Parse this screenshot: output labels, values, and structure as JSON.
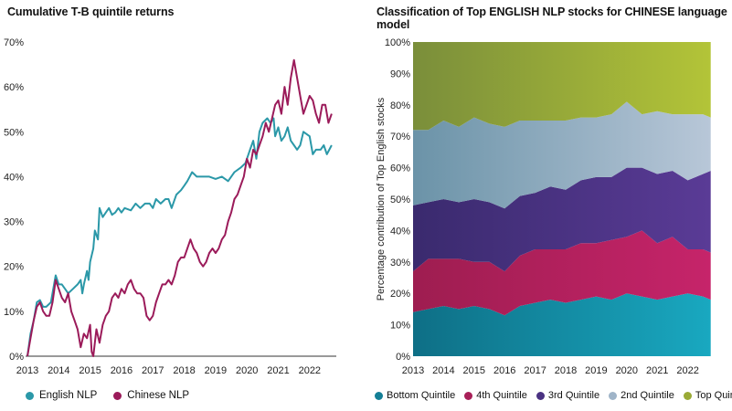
{
  "chart_data": [
    {
      "type": "line",
      "title": "Cumulative T-B quintile returns",
      "ylim": [
        0,
        70
      ],
      "y_ticks": [
        "0%",
        "10%",
        "20%",
        "30%",
        "40%",
        "50%",
        "60%",
        "70%"
      ],
      "x_ticks": [
        "2013",
        "2014",
        "2015",
        "2016",
        "2017",
        "2018",
        "2019",
        "2020",
        "2021",
        "2022"
      ],
      "xlim": [
        2013.0,
        2022.85
      ],
      "grid": false,
      "legend_position": "bottom",
      "series": [
        {
          "name": "English NLP",
          "color": "#2b98a8",
          "points": [
            [
              2013.0,
              0
            ],
            [
              2013.1,
              5
            ],
            [
              2013.2,
              8
            ],
            [
              2013.3,
              12
            ],
            [
              2013.4,
              12.5
            ],
            [
              2013.5,
              11
            ],
            [
              2013.6,
              11
            ],
            [
              2013.75,
              12
            ],
            [
              2013.9,
              18
            ],
            [
              2014.0,
              16
            ],
            [
              2014.1,
              16
            ],
            [
              2014.2,
              15
            ],
            [
              2014.3,
              14
            ],
            [
              2014.45,
              15
            ],
            [
              2014.6,
              16
            ],
            [
              2014.7,
              17
            ],
            [
              2014.75,
              14
            ],
            [
              2014.8,
              16
            ],
            [
              2014.9,
              19
            ],
            [
              2014.95,
              17
            ],
            [
              2015.0,
              21
            ],
            [
              2015.1,
              24
            ],
            [
              2015.15,
              28
            ],
            [
              2015.25,
              26
            ],
            [
              2015.3,
              33
            ],
            [
              2015.4,
              31
            ],
            [
              2015.5,
              32
            ],
            [
              2015.6,
              33
            ],
            [
              2015.7,
              31.5
            ],
            [
              2015.8,
              32
            ],
            [
              2015.9,
              33
            ],
            [
              2016.0,
              32
            ],
            [
              2016.1,
              33
            ],
            [
              2016.3,
              32.5
            ],
            [
              2016.45,
              34
            ],
            [
              2016.6,
              33
            ],
            [
              2016.75,
              34
            ],
            [
              2016.9,
              34
            ],
            [
              2017.0,
              33
            ],
            [
              2017.1,
              35
            ],
            [
              2017.25,
              34
            ],
            [
              2017.4,
              35
            ],
            [
              2017.5,
              35
            ],
            [
              2017.6,
              33
            ],
            [
              2017.75,
              36
            ],
            [
              2017.9,
              37
            ],
            [
              2018.0,
              38
            ],
            [
              2018.1,
              39
            ],
            [
              2018.25,
              41
            ],
            [
              2018.4,
              40
            ],
            [
              2018.6,
              40
            ],
            [
              2018.8,
              40
            ],
            [
              2019.0,
              39.5
            ],
            [
              2019.2,
              40
            ],
            [
              2019.4,
              39
            ],
            [
              2019.6,
              41
            ],
            [
              2019.8,
              42
            ],
            [
              2019.95,
              43
            ],
            [
              2020.0,
              44
            ],
            [
              2020.1,
              46
            ],
            [
              2020.2,
              48
            ],
            [
              2020.3,
              44
            ],
            [
              2020.4,
              50
            ],
            [
              2020.5,
              52
            ],
            [
              2020.65,
              53
            ],
            [
              2020.75,
              52
            ],
            [
              2020.85,
              53
            ],
            [
              2020.9,
              49
            ],
            [
              2021.0,
              51
            ],
            [
              2021.1,
              48
            ],
            [
              2021.2,
              49
            ],
            [
              2021.3,
              51
            ],
            [
              2021.4,
              48
            ],
            [
              2021.5,
              47
            ],
            [
              2021.6,
              46
            ],
            [
              2021.7,
              47
            ],
            [
              2021.8,
              50
            ],
            [
              2022.0,
              49
            ],
            [
              2022.1,
              45
            ],
            [
              2022.2,
              46
            ],
            [
              2022.35,
              46
            ],
            [
              2022.45,
              47
            ],
            [
              2022.55,
              45
            ],
            [
              2022.7,
              47
            ]
          ]
        },
        {
          "name": "Chinese NLP",
          "color": "#9b1b5a",
          "points": [
            [
              2013.0,
              0
            ],
            [
              2013.1,
              4
            ],
            [
              2013.2,
              8
            ],
            [
              2013.3,
              11
            ],
            [
              2013.4,
              12
            ],
            [
              2013.5,
              10
            ],
            [
              2013.6,
              9
            ],
            [
              2013.7,
              9
            ],
            [
              2013.8,
              12
            ],
            [
              2013.9,
              17
            ],
            [
              2014.0,
              15
            ],
            [
              2014.1,
              13
            ],
            [
              2014.2,
              12
            ],
            [
              2014.3,
              14
            ],
            [
              2014.4,
              10
            ],
            [
              2014.5,
              8
            ],
            [
              2014.6,
              6
            ],
            [
              2014.7,
              2
            ],
            [
              2014.8,
              5
            ],
            [
              2014.9,
              4
            ],
            [
              2015.0,
              7
            ],
            [
              2015.05,
              1
            ],
            [
              2015.1,
              0
            ],
            [
              2015.2,
              6
            ],
            [
              2015.3,
              3
            ],
            [
              2015.4,
              7
            ],
            [
              2015.5,
              9
            ],
            [
              2015.6,
              10
            ],
            [
              2015.7,
              13
            ],
            [
              2015.8,
              14
            ],
            [
              2015.9,
              13
            ],
            [
              2016.0,
              15
            ],
            [
              2016.1,
              14
            ],
            [
              2016.2,
              16
            ],
            [
              2016.3,
              17
            ],
            [
              2016.4,
              15
            ],
            [
              2016.5,
              14
            ],
            [
              2016.6,
              14
            ],
            [
              2016.7,
              13
            ],
            [
              2016.8,
              9
            ],
            [
              2016.9,
              8
            ],
            [
              2017.0,
              9
            ],
            [
              2017.1,
              12
            ],
            [
              2017.2,
              14
            ],
            [
              2017.3,
              16
            ],
            [
              2017.4,
              16
            ],
            [
              2017.5,
              17
            ],
            [
              2017.6,
              16
            ],
            [
              2017.7,
              18
            ],
            [
              2017.8,
              21
            ],
            [
              2017.9,
              22
            ],
            [
              2018.0,
              22
            ],
            [
              2018.1,
              24
            ],
            [
              2018.2,
              26
            ],
            [
              2018.3,
              24
            ],
            [
              2018.4,
              23
            ],
            [
              2018.5,
              21
            ],
            [
              2018.6,
              20
            ],
            [
              2018.7,
              21
            ],
            [
              2018.8,
              23
            ],
            [
              2018.9,
              24
            ],
            [
              2019.0,
              23
            ],
            [
              2019.1,
              24
            ],
            [
              2019.2,
              26
            ],
            [
              2019.3,
              27
            ],
            [
              2019.4,
              30
            ],
            [
              2019.5,
              32
            ],
            [
              2019.6,
              35
            ],
            [
              2019.7,
              36
            ],
            [
              2019.8,
              38
            ],
            [
              2019.9,
              40
            ],
            [
              2020.0,
              44
            ],
            [
              2020.1,
              42
            ],
            [
              2020.2,
              46
            ],
            [
              2020.3,
              45
            ],
            [
              2020.4,
              47
            ],
            [
              2020.5,
              49
            ],
            [
              2020.6,
              52
            ],
            [
              2020.7,
              50
            ],
            [
              2020.8,
              53
            ],
            [
              2020.9,
              56
            ],
            [
              2021.0,
              57
            ],
            [
              2021.1,
              54
            ],
            [
              2021.2,
              60
            ],
            [
              2021.3,
              56
            ],
            [
              2021.4,
              62
            ],
            [
              2021.5,
              66
            ],
            [
              2021.6,
              62
            ],
            [
              2021.7,
              58
            ],
            [
              2021.8,
              54
            ],
            [
              2021.9,
              56
            ],
            [
              2022.0,
              58
            ],
            [
              2022.1,
              57
            ],
            [
              2022.2,
              54
            ],
            [
              2022.3,
              52
            ],
            [
              2022.4,
              56
            ],
            [
              2022.5,
              56
            ],
            [
              2022.6,
              52
            ],
            [
              2022.7,
              54
            ]
          ]
        }
      ]
    },
    {
      "type": "area",
      "stacked": true,
      "title": "Classification of Top ENGLISH NLP stocks for CHINESE language model",
      "ylabel": "Percentage contribution of Top English stocks",
      "ylim": [
        0,
        100
      ],
      "y_ticks": [
        "0%",
        "10%",
        "20%",
        "30%",
        "40%",
        "50%",
        "60%",
        "70%",
        "80%",
        "90%",
        "100%"
      ],
      "x_ticks": [
        "2013",
        "2014",
        "2015",
        "2016",
        "2017",
        "2018",
        "2019",
        "2020",
        "2021",
        "2022"
      ],
      "xlim": [
        2013.0,
        2022.85
      ],
      "grid": false,
      "legend_position": "bottom",
      "x": [
        2013.0,
        2013.5,
        2014.0,
        2014.5,
        2015.0,
        2015.5,
        2016.0,
        2016.5,
        2017.0,
        2017.5,
        2018.0,
        2018.5,
        2019.0,
        2019.5,
        2020.0,
        2020.5,
        2021.0,
        2021.5,
        2022.0,
        2022.5,
        2022.75
      ],
      "series": [
        {
          "name": "Bottom Quintile",
          "color_start": "#0e6f86",
          "color_end": "#19a8c0",
          "values": [
            14,
            15,
            16,
            15,
            16,
            15,
            13,
            16,
            17,
            18,
            17,
            18,
            19,
            18,
            20,
            19,
            18,
            19,
            20,
            19,
            18
          ]
        },
        {
          "name": "4th Quintile",
          "color_start": "#9e1d50",
          "color_end": "#c6246a",
          "values": [
            13,
            16,
            15,
            16,
            14,
            15,
            14,
            16,
            17,
            16,
            17,
            18,
            17,
            19,
            18,
            21,
            18,
            19,
            14,
            15,
            15
          ]
        },
        {
          "name": "3rd Quintile",
          "color_start": "#3a2a6e",
          "color_end": "#5a3b96",
          "values": [
            21,
            18,
            19,
            18,
            20,
            19,
            20,
            19,
            18,
            20,
            19,
            20,
            21,
            20,
            22,
            20,
            22,
            21,
            22,
            24,
            26
          ]
        },
        {
          "name": "2nd Quintile",
          "color_start": "#6b93a8",
          "color_end": "#b8c7d8",
          "values": [
            24,
            23,
            25,
            24,
            26,
            25,
            26,
            24,
            23,
            21,
            22,
            20,
            19,
            20,
            21,
            17,
            20,
            18,
            21,
            19,
            17
          ]
        },
        {
          "name": "Top Quintile",
          "color_start": "#7a8e3a",
          "color_end": "#b3c438",
          "values": [
            28,
            28,
            25,
            27,
            24,
            26,
            27,
            25,
            25,
            25,
            25,
            24,
            24,
            23,
            19,
            23,
            22,
            23,
            23,
            23,
            24
          ]
        }
      ]
    }
  ]
}
